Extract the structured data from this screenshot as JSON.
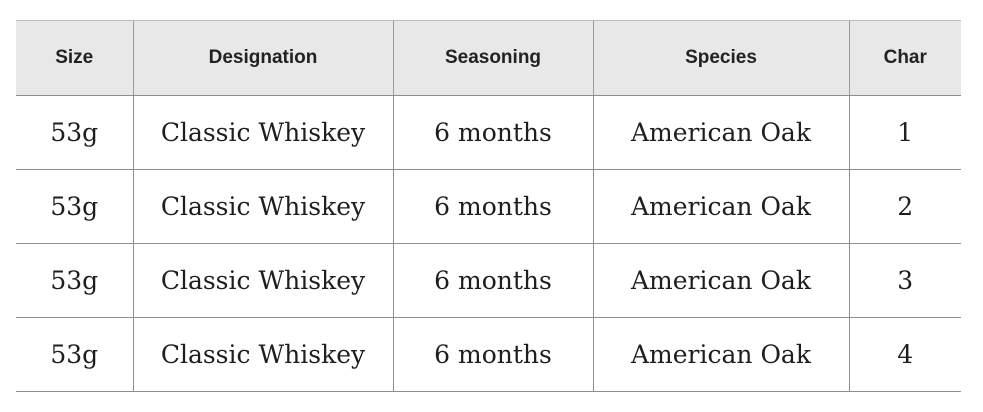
{
  "table": {
    "headers": [
      "Size",
      "Designation",
      "Seasoning",
      "Species",
      "Char"
    ],
    "rows": [
      [
        "53g",
        "Classic Whiskey",
        "6 months",
        "American Oak",
        "1"
      ],
      [
        "53g",
        "Classic Whiskey",
        "6 months",
        "American Oak",
        "2"
      ],
      [
        "53g",
        "Classic Whiskey",
        "6 months",
        "American Oak",
        "3"
      ],
      [
        "53g",
        "Classic Whiskey",
        "6 months",
        "American Oak",
        "4"
      ]
    ]
  }
}
